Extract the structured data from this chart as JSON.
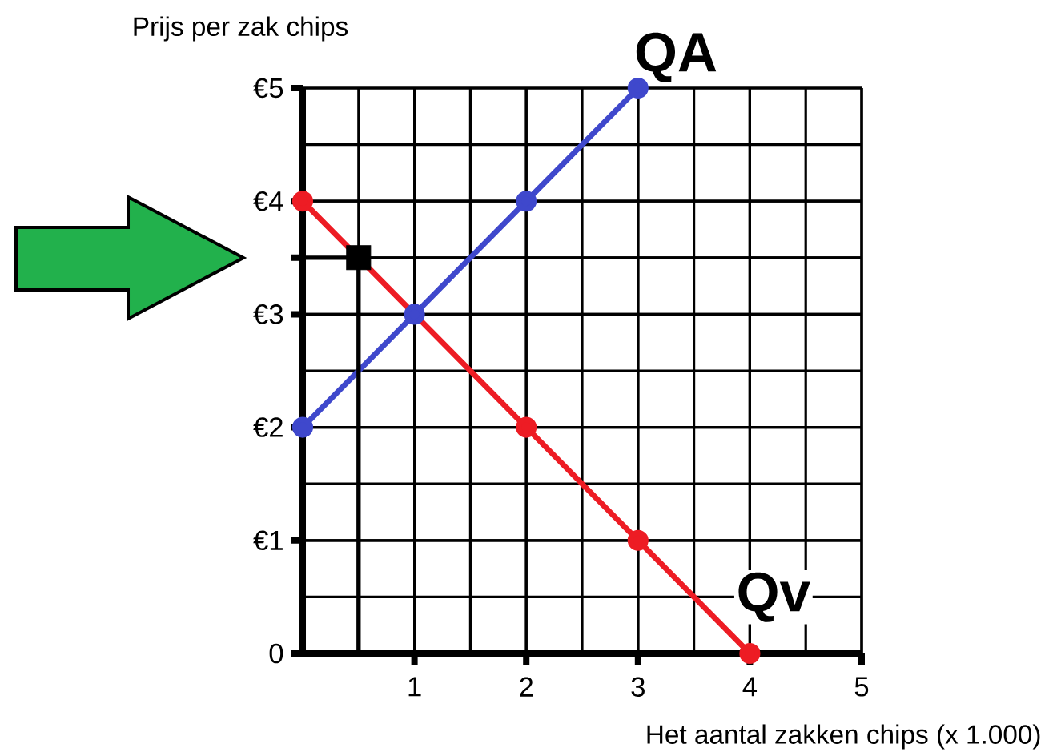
{
  "chart_data": {
    "type": "line",
    "xlabel": "Het aantal zakken chips (x 1.000)",
    "ylabel": "Prijs per zak chips",
    "xlim": [
      0,
      5
    ],
    "ylim": [
      0,
      5
    ],
    "xticks": [
      1,
      2,
      3,
      4,
      5
    ],
    "yticks": [
      {
        "value": 0,
        "label": "0"
      },
      {
        "value": 1,
        "label": "€1"
      },
      {
        "value": 2,
        "label": "€2"
      },
      {
        "value": 3,
        "label": "€3"
      },
      {
        "value": 3.5,
        "label": null
      },
      {
        "value": 4,
        "label": "€4"
      },
      {
        "value": 5,
        "label": "€5"
      }
    ],
    "grid": true,
    "marker": "circle",
    "line_style": "solid",
    "series": [
      {
        "name": "QA",
        "color": "#3f48cc",
        "x": [
          0,
          1,
          2,
          3
        ],
        "values": [
          2,
          3,
          4,
          5
        ]
      },
      {
        "name": "Qv",
        "color": "#ed1c24",
        "x": [
          0,
          2,
          3,
          4
        ],
        "values": [
          4,
          2,
          1,
          0
        ]
      },
      {
        "color": "#000000",
        "x": [
          0,
          0.5,
          0.5
        ],
        "values": [
          3.5,
          3.5,
          0
        ],
        "marker": "none"
      },
      {
        "type": "scatter",
        "color": "#000000",
        "x": [
          0.5
        ],
        "values": [
          3.5
        ],
        "marker": "square"
      }
    ]
  }
}
